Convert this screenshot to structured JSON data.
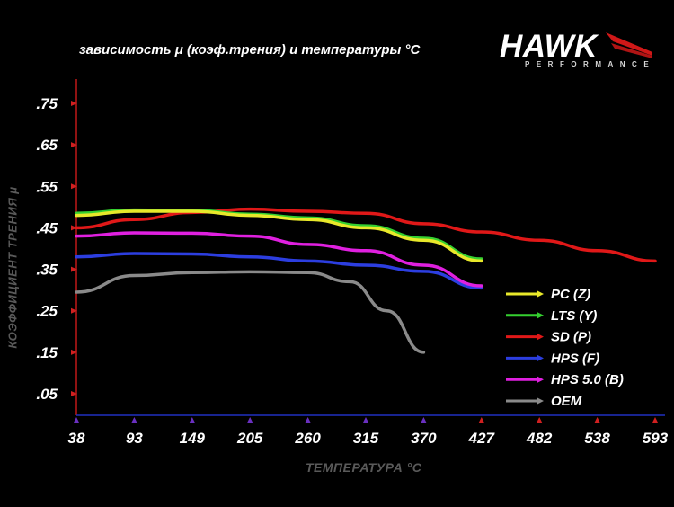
{
  "chart_data": {
    "type": "line",
    "title": "зависимость μ (коэф.трения) и температуры °С",
    "xlabel": "ТЕМПЕРАТУРА °С",
    "ylabel": "КОЭФФИЦИЕНТ ТРЕНИЯ μ",
    "x_ticks": [
      38,
      93,
      149,
      205,
      260,
      315,
      370,
      427,
      482,
      538,
      593
    ],
    "y_ticks": [
      ".05",
      ".15",
      ".25",
      ".35",
      ".45",
      ".55",
      ".65",
      ".75"
    ],
    "y_tick_values": [
      0.05,
      0.15,
      0.25,
      0.35,
      0.45,
      0.55,
      0.65,
      0.75
    ],
    "xlim": [
      38,
      593
    ],
    "ylim": [
      0,
      0.8
    ],
    "legend_position": "bottom-right",
    "grid": false,
    "series": [
      {
        "name": "PC (Z)",
        "color": "#e8e82a",
        "points": [
          [
            38,
            0.48
          ],
          [
            93,
            0.49
          ],
          [
            149,
            0.49
          ],
          [
            205,
            0.48
          ],
          [
            260,
            0.47
          ],
          [
            315,
            0.45
          ],
          [
            370,
            0.42
          ],
          [
            427,
            0.37
          ]
        ]
      },
      {
        "name": "LTS (Y)",
        "color": "#35d030",
        "points": [
          [
            38,
            0.485
          ],
          [
            93,
            0.493
          ],
          [
            149,
            0.492
          ],
          [
            205,
            0.483
          ],
          [
            260,
            0.474
          ],
          [
            315,
            0.455
          ],
          [
            370,
            0.425
          ],
          [
            427,
            0.375
          ]
        ]
      },
      {
        "name": "SD (P)",
        "color": "#e01818",
        "points": [
          [
            38,
            0.45
          ],
          [
            93,
            0.47
          ],
          [
            149,
            0.487
          ],
          [
            205,
            0.495
          ],
          [
            260,
            0.49
          ],
          [
            315,
            0.485
          ],
          [
            370,
            0.46
          ],
          [
            427,
            0.44
          ],
          [
            482,
            0.42
          ],
          [
            538,
            0.395
          ],
          [
            593,
            0.37
          ]
        ]
      },
      {
        "name": "HPS (F)",
        "color": "#2c3ee0",
        "points": [
          [
            38,
            0.38
          ],
          [
            93,
            0.388
          ],
          [
            149,
            0.387
          ],
          [
            205,
            0.38
          ],
          [
            260,
            0.37
          ],
          [
            315,
            0.36
          ],
          [
            370,
            0.345
          ],
          [
            427,
            0.305
          ]
        ]
      },
      {
        "name": "HPS 5.0 (B)",
        "color": "#e020e0",
        "points": [
          [
            38,
            0.43
          ],
          [
            93,
            0.438
          ],
          [
            149,
            0.437
          ],
          [
            205,
            0.43
          ],
          [
            260,
            0.41
          ],
          [
            315,
            0.395
          ],
          [
            370,
            0.36
          ],
          [
            427,
            0.31
          ]
        ]
      },
      {
        "name": "OEM",
        "color": "#8a8a8a",
        "points": [
          [
            38,
            0.295
          ],
          [
            93,
            0.335
          ],
          [
            149,
            0.342
          ],
          [
            205,
            0.344
          ],
          [
            260,
            0.342
          ],
          [
            300,
            0.32
          ],
          [
            335,
            0.25
          ],
          [
            370,
            0.15
          ]
        ]
      }
    ]
  },
  "logo": {
    "word": "HAWK",
    "sub": "PERFORMANCE"
  },
  "colors": {
    "axis_y": "#c01818",
    "axis_x": "#2030c0",
    "tick_marker_y": "#d02020",
    "tick_marker_x": "#6a30c0"
  }
}
